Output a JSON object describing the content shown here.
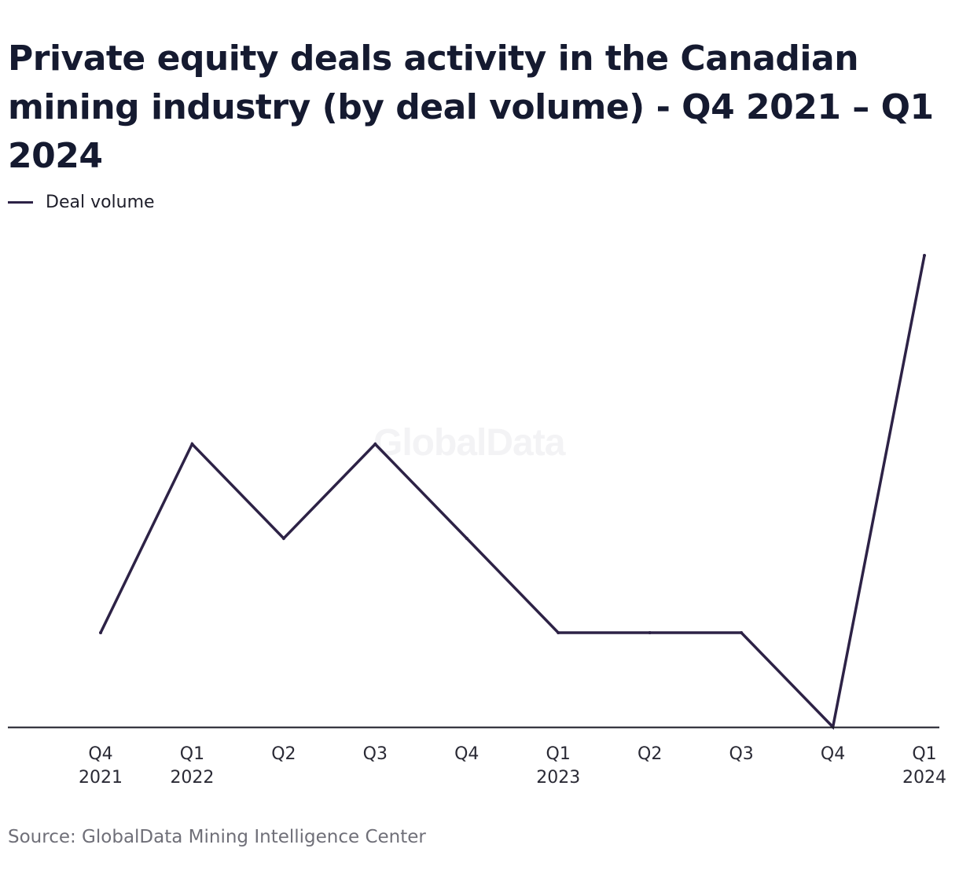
{
  "title": "Private equity deals activity in the Canadian mining industry (by deal volume) - Q4 2021 – Q1 2024",
  "legend": {
    "label": "Deal volume"
  },
  "watermark": "GlobalData",
  "source": "Source: GlobalData Mining Intelligence Center",
  "colors": {
    "line": "#2d2246",
    "axis": "#1a1a26"
  },
  "chart_data": {
    "type": "line",
    "title": "Private equity deals activity in the Canadian mining industry (by deal volume) - Q4 2021 – Q1 2024",
    "xlabel": "",
    "ylabel": "",
    "categories": [
      [
        "Q4",
        "2021"
      ],
      [
        "Q1",
        "2022"
      ],
      [
        "Q2",
        ""
      ],
      [
        "Q3",
        ""
      ],
      [
        "Q4",
        ""
      ],
      [
        "Q1",
        "2023"
      ],
      [
        "Q2",
        ""
      ],
      [
        "Q3",
        ""
      ],
      [
        "Q4",
        ""
      ],
      [
        "Q1",
        "2024"
      ]
    ],
    "series": [
      {
        "name": "Deal volume",
        "values": [
          1,
          3,
          2,
          3,
          2,
          1,
          1,
          1,
          0,
          5
        ]
      }
    ],
    "ylim": [
      0,
      5
    ],
    "grid": false,
    "legend_position": "top-left"
  }
}
